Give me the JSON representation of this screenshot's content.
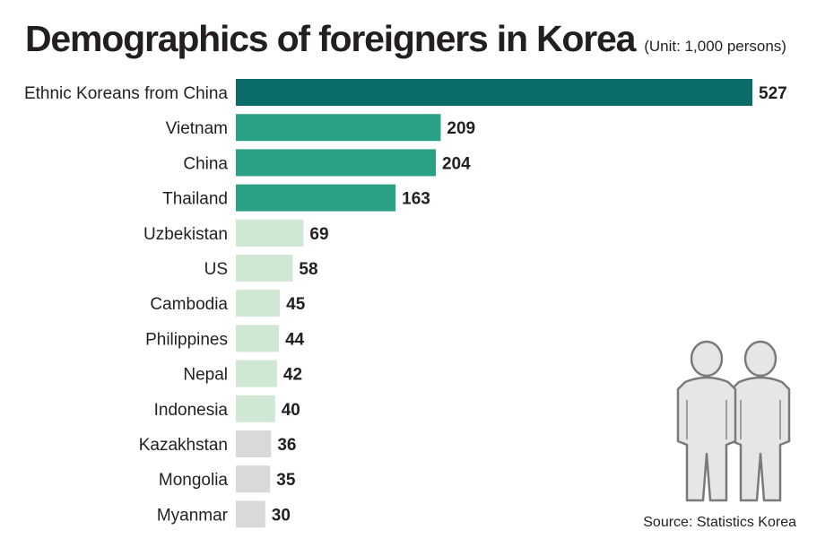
{
  "title": "Demographics of foreigners in Korea",
  "unit": "(Unit: 1,000 persons)",
  "source": "Source: Statistics Korea",
  "illustration": "people-icon",
  "colors": {
    "top": "#0b6c67",
    "high": "#2aa085",
    "mid": "#cfe7d3",
    "low": "#d9d9d9"
  },
  "chart_data": {
    "type": "bar",
    "orientation": "horizontal",
    "categories": [
      "Ethnic Koreans from China",
      "Vietnam",
      "China",
      "Thailand",
      "Uzbekistan",
      "US",
      "Cambodia",
      "Philippines",
      "Nepal",
      "Indonesia",
      "Kazakhstan",
      "Mongolia",
      "Myanmar"
    ],
    "values": [
      527,
      209,
      204,
      163,
      69,
      58,
      45,
      44,
      42,
      40,
      36,
      35,
      30
    ],
    "color_groups": [
      "top",
      "high",
      "high",
      "high",
      "mid",
      "mid",
      "mid",
      "mid",
      "mid",
      "mid",
      "low",
      "low",
      "low"
    ],
    "value_labels": [
      "527",
      "209",
      "204",
      "163",
      "69",
      "58",
      "45",
      "44",
      "42",
      "40",
      "36",
      "35",
      "30"
    ],
    "title": "Demographics of foreigners in Korea",
    "unit": "(Unit: 1,000 persons)",
    "xlim": [
      0,
      527
    ],
    "grid": false,
    "legend": "none"
  }
}
